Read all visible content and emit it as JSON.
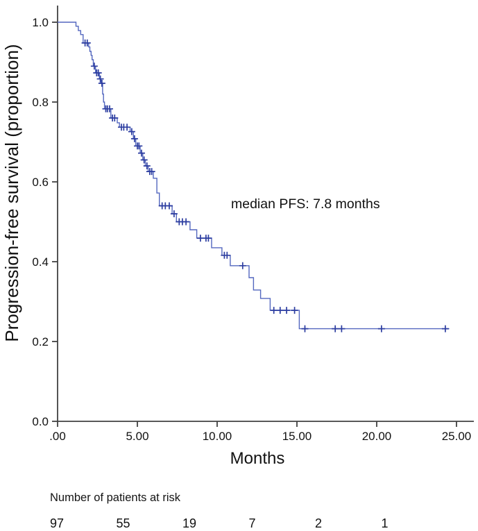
{
  "chart_data": {
    "type": "line",
    "subtype": "kaplan-meier-step-curve",
    "title": "",
    "xlabel": "Months",
    "ylabel": "Progression-free survival (proportion)",
    "annotation": "median PFS: 7.8 months",
    "median_pfs_months": 7.8,
    "xlim": [
      0,
      26
    ],
    "ylim": [
      0.0,
      1.05
    ],
    "x_ticks": [
      0,
      5,
      10,
      15,
      20,
      25
    ],
    "x_tick_labels": [
      ".00",
      "5.00",
      "10.00",
      "15.00",
      "20.00",
      "25.00"
    ],
    "y_ticks": [
      0.0,
      0.2,
      0.4,
      0.6,
      0.8,
      1.0
    ],
    "y_tick_labels": [
      "0.0",
      "0.2",
      "0.4",
      "0.6",
      "0.8",
      "1.0"
    ],
    "grid": false,
    "legend": false,
    "line_color": "#5367bf",
    "censor_color": "#2c3da0",
    "axis_color": "#404040",
    "series": [
      {
        "name": "Progression-free survival",
        "steps": [
          [
            0.0,
            1.0
          ],
          [
            1.15,
            0.99
          ],
          [
            1.3,
            0.979
          ],
          [
            1.45,
            0.969
          ],
          [
            1.6,
            0.948
          ],
          [
            1.95,
            0.938
          ],
          [
            2.02,
            0.927
          ],
          [
            2.1,
            0.917
          ],
          [
            2.16,
            0.906
          ],
          [
            2.24,
            0.89
          ],
          [
            2.38,
            0.873
          ],
          [
            2.62,
            0.858
          ],
          [
            2.72,
            0.847
          ],
          [
            2.82,
            0.82
          ],
          [
            2.88,
            0.8
          ],
          [
            2.94,
            0.783
          ],
          [
            3.34,
            0.76
          ],
          [
            3.74,
            0.748
          ],
          [
            3.88,
            0.737
          ],
          [
            4.55,
            0.726
          ],
          [
            4.75,
            0.708
          ],
          [
            4.9,
            0.69
          ],
          [
            5.18,
            0.672
          ],
          [
            5.34,
            0.655
          ],
          [
            5.5,
            0.64
          ],
          [
            5.68,
            0.626
          ],
          [
            6.0,
            0.609
          ],
          [
            6.22,
            0.572
          ],
          [
            6.38,
            0.54
          ],
          [
            7.18,
            0.52
          ],
          [
            7.45,
            0.5
          ],
          [
            8.3,
            0.48
          ],
          [
            8.72,
            0.459
          ],
          [
            9.65,
            0.435
          ],
          [
            10.3,
            0.416
          ],
          [
            10.82,
            0.39
          ],
          [
            12.0,
            0.36
          ],
          [
            12.28,
            0.329
          ],
          [
            12.72,
            0.308
          ],
          [
            13.32,
            0.278
          ],
          [
            15.15,
            0.232
          ],
          [
            24.55,
            0.232
          ]
        ],
        "censors": [
          [
            1.72,
            0.948
          ],
          [
            1.86,
            0.948
          ],
          [
            2.3,
            0.89
          ],
          [
            2.45,
            0.873
          ],
          [
            2.55,
            0.873
          ],
          [
            2.68,
            0.858
          ],
          [
            2.78,
            0.847
          ],
          [
            3.02,
            0.783
          ],
          [
            3.12,
            0.783
          ],
          [
            3.26,
            0.783
          ],
          [
            3.44,
            0.76
          ],
          [
            3.58,
            0.76
          ],
          [
            4.0,
            0.737
          ],
          [
            4.15,
            0.737
          ],
          [
            4.35,
            0.737
          ],
          [
            4.65,
            0.726
          ],
          [
            4.82,
            0.708
          ],
          [
            5.0,
            0.69
          ],
          [
            5.1,
            0.69
          ],
          [
            5.26,
            0.672
          ],
          [
            5.42,
            0.655
          ],
          [
            5.6,
            0.64
          ],
          [
            5.78,
            0.626
          ],
          [
            5.9,
            0.626
          ],
          [
            6.55,
            0.54
          ],
          [
            6.75,
            0.54
          ],
          [
            7.0,
            0.54
          ],
          [
            7.3,
            0.52
          ],
          [
            7.62,
            0.5
          ],
          [
            7.82,
            0.5
          ],
          [
            8.05,
            0.5
          ],
          [
            8.95,
            0.459
          ],
          [
            9.3,
            0.459
          ],
          [
            9.45,
            0.459
          ],
          [
            10.45,
            0.416
          ],
          [
            10.62,
            0.416
          ],
          [
            11.6,
            0.39
          ],
          [
            13.55,
            0.278
          ],
          [
            13.95,
            0.278
          ],
          [
            14.35,
            0.278
          ],
          [
            14.85,
            0.278
          ],
          [
            15.5,
            0.232
          ],
          [
            17.4,
            0.232
          ],
          [
            17.8,
            0.232
          ],
          [
            20.3,
            0.232
          ],
          [
            24.3,
            0.232
          ]
        ]
      }
    ],
    "at_risk": {
      "label": "Number of patients at risk",
      "times": [
        0,
        5,
        10,
        15,
        20,
        25
      ],
      "counts": [
        97,
        55,
        19,
        7,
        2,
        1
      ]
    }
  }
}
